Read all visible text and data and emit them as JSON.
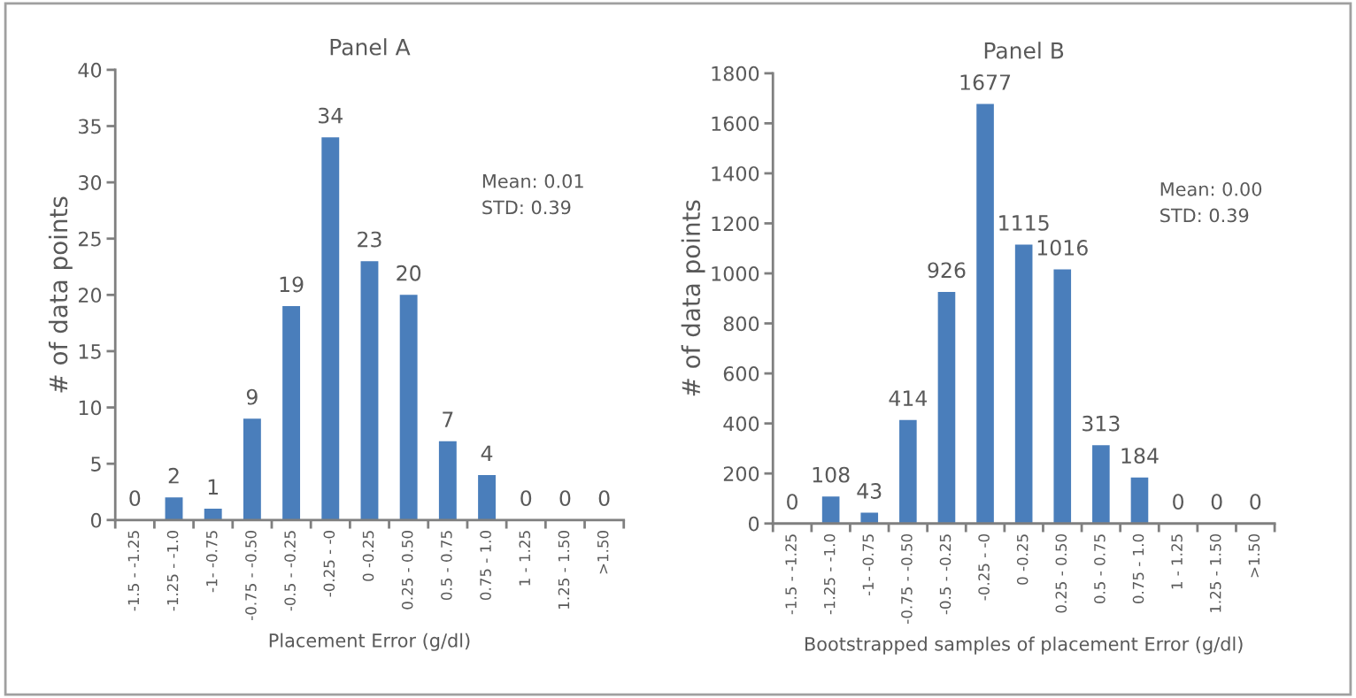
{
  "chart_data": [
    {
      "type": "bar",
      "title": "Panel A",
      "xlabel": "Placement Error (g/dl)",
      "ylabel": "# of data points",
      "categories": [
        "-1.5 - -1.25",
        "-1.25 - -1.0",
        "-1- -0.75",
        "-0.75 - -0.50",
        "-0.5 - -0.25",
        "-0.25 - -0",
        "0 -0.25",
        "0.25 - 0.50",
        "0.5 - 0.75",
        "0.75 - 1.0",
        "1 - 1.25",
        "1.25 - 1.50",
        ">1.50"
      ],
      "values": [
        0,
        2,
        1,
        9,
        19,
        34,
        23,
        20,
        7,
        4,
        0,
        0,
        0
      ],
      "color": "#4a7ebb",
      "ylim": [
        0,
        40
      ],
      "yticks": [
        0,
        5,
        10,
        15,
        20,
        25,
        30,
        35,
        40
      ],
      "data_labels": true,
      "grid": false,
      "legend": false,
      "annotations": [
        "Mean: 0.01\nSTD: 0.39"
      ]
    },
    {
      "type": "bar",
      "title": "Panel B",
      "xlabel": "Bootstrapped samples of placement Error (g/dl)",
      "ylabel": "# of data points",
      "categories": [
        "-1.5 - -1.25",
        "-1.25 - -1.0",
        "-1- -0.75",
        "-0.75 - -0.50",
        "-0.5 - -0.25",
        "-0.25 - -0",
        "0 -0.25",
        "0.25 - 0.50",
        "0.5 - 0.75",
        "0.75 - 1.0",
        "1 - 1.25",
        "1.25 - 1.50",
        ">1.50"
      ],
      "values": [
        0,
        108,
        43,
        414,
        926,
        1677,
        1115,
        1016,
        313,
        184,
        0,
        0,
        0
      ],
      "color": "#4a7ebb",
      "ylim": [
        0,
        1800
      ],
      "yticks": [
        0,
        200,
        400,
        600,
        800,
        1000,
        1200,
        1400,
        1600,
        1800
      ],
      "data_labels": true,
      "grid": false,
      "legend": false,
      "annotations": [
        "Mean: 0.00\nSTD: 0.39"
      ]
    }
  ]
}
